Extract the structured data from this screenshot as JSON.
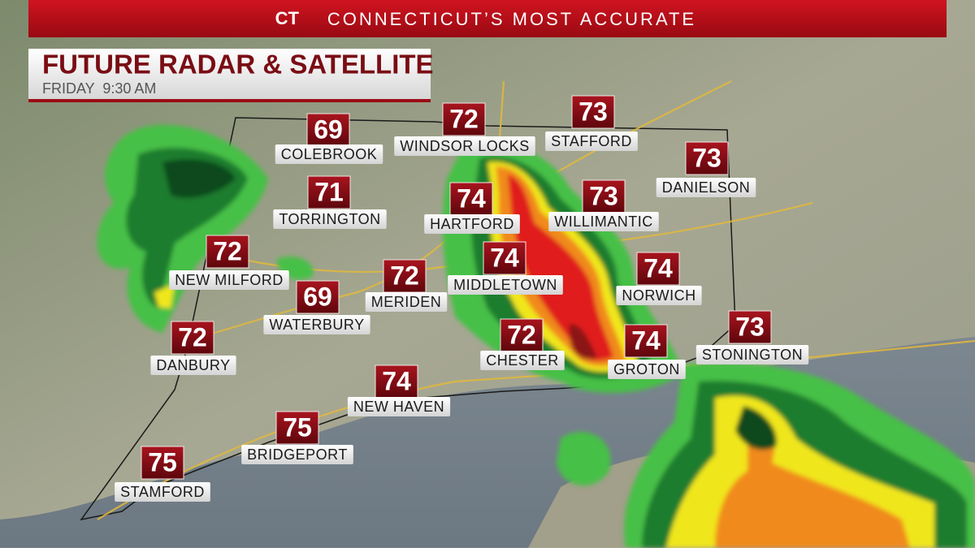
{
  "header": {
    "logo": "CT",
    "banner": "CONNECTICUT’S MOST ACCURATE",
    "title": "FUTURE RADAR & SATELLITE",
    "subtitle": "FRIDAY  9:30 AM"
  },
  "cities": [
    {
      "name": "COLEBROOK",
      "temp": "69"
    },
    {
      "name": "WINDSOR LOCKS",
      "temp": "72"
    },
    {
      "name": "STAFFORD",
      "temp": "73"
    },
    {
      "name": "DANIELSON",
      "temp": "73"
    },
    {
      "name": "TORRINGTON",
      "temp": "71"
    },
    {
      "name": "HARTFORD",
      "temp": "74"
    },
    {
      "name": "WILLIMANTIC",
      "temp": "73"
    },
    {
      "name": "NEW MILFORD",
      "temp": "72"
    },
    {
      "name": "MERIDEN",
      "temp": "72"
    },
    {
      "name": "MIDDLETOWN",
      "temp": "74"
    },
    {
      "name": "NORWICH",
      "temp": "74"
    },
    {
      "name": "WATERBURY",
      "temp": "69"
    },
    {
      "name": "DANBURY",
      "temp": "72"
    },
    {
      "name": "CHESTER",
      "temp": "72"
    },
    {
      "name": "GROTON",
      "temp": "74"
    },
    {
      "name": "STONINGTON",
      "temp": "73"
    },
    {
      "name": "NEW HAVEN",
      "temp": "74"
    },
    {
      "name": "BRIDGEPORT",
      "temp": "75"
    },
    {
      "name": "STAMFORD",
      "temp": "75"
    }
  ]
}
